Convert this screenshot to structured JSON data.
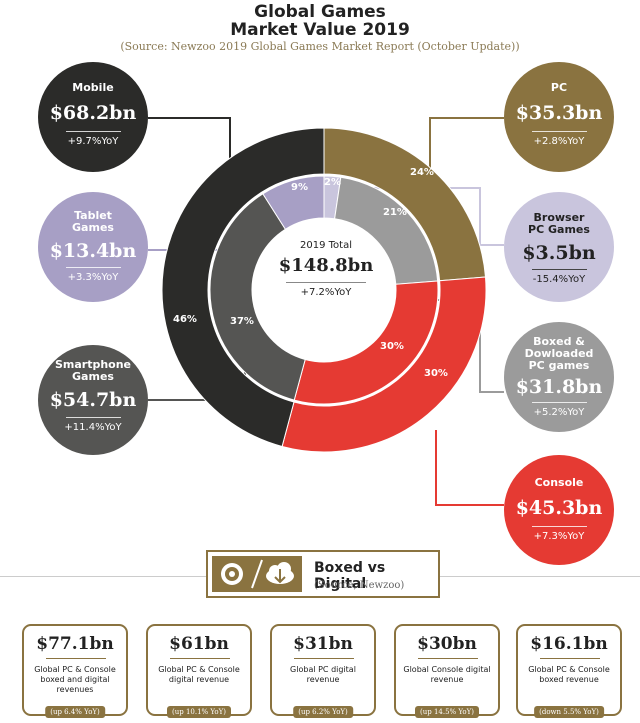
{
  "header": {
    "title_line1": "Global Games",
    "title_line2": "Market Value 2019",
    "source": "(Source: Newzoo 2019 Global Games Market Report (October Update))"
  },
  "center": {
    "label": "2019 Total",
    "value": "$148.8bn",
    "yoy": "+7.2%YoY"
  },
  "segments": {
    "mobile": {
      "name": "Mobile",
      "value": "$68.2bn",
      "yoy": "+9.7%YoY",
      "pct_label": "46%",
      "color": "#2b2b29"
    },
    "pc": {
      "name": "PC",
      "value": "$35.3bn",
      "yoy": "+2.8%YoY",
      "pct_label": "24%",
      "color": "#8a7340"
    },
    "console": {
      "name": "Console",
      "value": "$45.3bn",
      "yoy": "+7.3%YoY",
      "pct_label": "30%",
      "color": "#e53a33"
    },
    "tablet": {
      "name_line1": "Tablet",
      "name_line2": "Games",
      "value": "$13.4bn",
      "yoy": "+3.3%YoY",
      "pct_label": "9%",
      "color": "#a79fc5"
    },
    "smartphone": {
      "name_line1": "Smartphone",
      "name_line2": "Games",
      "value": "$54.7bn",
      "yoy": "+11.4%YoY",
      "pct_label": "37%",
      "color": "#555553"
    },
    "browser": {
      "name_line1": "Browser",
      "name_line2": "PC Games",
      "value": "$3.5bn",
      "yoy": "-15.4%YoY",
      "pct_label": "2%",
      "color": "#c9c5dd"
    },
    "boxed": {
      "name_line1": "Boxed &",
      "name_line2": "Dowloaded",
      "name_line3": "PC games",
      "value": "$31.8bn",
      "yoy": "+5.2%YoY",
      "pct_label": "21%",
      "color": "#9b9b9b"
    },
    "console_inner": {
      "pct_label": "30%",
      "color": "#e53a33"
    }
  },
  "chart_data": {
    "type": "pie",
    "title": "Global Games Market Value 2019",
    "outer_ring": {
      "categories": [
        "PC",
        "Console",
        "Mobile"
      ],
      "values": [
        35.3,
        45.3,
        68.2
      ],
      "percent": [
        24,
        30,
        46
      ]
    },
    "inner_ring": {
      "categories": [
        "Browser PC Games",
        "Boxed & Dowloaded PC games",
        "Console",
        "Smartphone Games",
        "Tablet Games"
      ],
      "values": [
        3.5,
        31.8,
        45.3,
        54.7,
        13.4
      ],
      "percent": [
        2,
        21,
        30,
        37,
        9
      ]
    },
    "total": 148.8
  },
  "boxed_vs_digital": {
    "title": "Boxed vs Digital",
    "source": "(Source, Newzoo)",
    "cards": [
      {
        "value": "$77.1bn",
        "desc": "Global PC & Console boxed and digital revenues",
        "badge": "(up 6.4% YoY)"
      },
      {
        "value": "$61bn",
        "desc": "Global PC & Console digital revenue",
        "badge": "(up 10.1% YoY)"
      },
      {
        "value": "$31bn",
        "desc": "Global PC digital revenue",
        "badge": "(up 6.2% YoY)"
      },
      {
        "value": "$30bn",
        "desc": "Global Console digital revenue",
        "badge": "(up 14.5% YoY)"
      },
      {
        "value": "$16.1bn",
        "desc": "Global PC & Console boxed revenue",
        "badge": "(down 5.5% YoY)"
      }
    ]
  }
}
